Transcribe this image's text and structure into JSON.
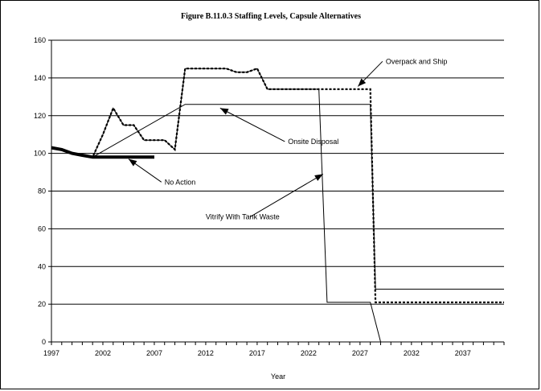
{
  "chart_data": {
    "type": "line",
    "title": "Figure B.11.0.3  Staffing Levels, Capsule Alternatives",
    "xlabel": "Year",
    "ylabel": "",
    "xlim": [
      1997,
      2041
    ],
    "ylim": [
      0,
      160
    ],
    "yticks": [
      0,
      20,
      40,
      60,
      80,
      100,
      120,
      140,
      160
    ],
    "xticks": [
      1997,
      2002,
      2007,
      2012,
      2017,
      2022,
      2027,
      2032,
      2037
    ],
    "grid": "horizontal",
    "legend": "none",
    "series": [
      {
        "name": "No Action",
        "style": "thick",
        "x": [
          1997,
          1998,
          1999,
          2000,
          2001,
          2002,
          2003,
          2004,
          2005,
          2006,
          2007
        ],
        "y": [
          103,
          102,
          100,
          99,
          98,
          98,
          98,
          98,
          98,
          98,
          98
        ]
      },
      {
        "name": "Onsite Disposal",
        "style": "thin",
        "x": [
          1997,
          1998,
          1999,
          2000,
          2001,
          2010,
          2018,
          2028,
          2028.5,
          2041
        ],
        "y": [
          103,
          102,
          100,
          99,
          98,
          126,
          126,
          126,
          28,
          28
        ]
      },
      {
        "name": "Overpack and Ship",
        "style": "dotted",
        "x": [
          1997,
          1998,
          1999,
          2000,
          2001,
          2002,
          2003,
          2004,
          2005,
          2006,
          2007,
          2008,
          2009,
          2010,
          2014,
          2015,
          2016,
          2017,
          2018,
          2028,
          2028.5,
          2041
        ],
        "y": [
          103,
          102,
          100,
          99,
          98,
          110,
          124,
          115,
          115,
          107,
          107,
          107,
          102,
          145,
          145,
          143,
          143,
          145,
          134,
          134,
          21,
          21
        ]
      },
      {
        "name": "Vitrify With Tank Waste",
        "style": "thin",
        "x": [
          1997,
          1998,
          1999,
          2000,
          2001,
          2002,
          2003,
          2004,
          2005,
          2006,
          2007,
          2008,
          2009,
          2010,
          2014,
          2015,
          2016,
          2017,
          2018,
          2023,
          2023.8,
          2028,
          2029
        ],
        "y": [
          103,
          102,
          100,
          99,
          98,
          110,
          124,
          115,
          115,
          107,
          107,
          107,
          102,
          145,
          145,
          143,
          143,
          145,
          134,
          134,
          21,
          21,
          0
        ]
      }
    ],
    "annotations": [
      {
        "text": "Overpack and Ship",
        "tx": 2029.5,
        "ty": 147.5,
        "ax": 2026.8,
        "ay": 135.5
      },
      {
        "text": "Onsite Disposal",
        "tx": 2020,
        "ty": 105,
        "ax": 2013.4,
        "ay": 124
      },
      {
        "text": "No Action",
        "tx": 2008,
        "ty": 83.5,
        "ax": 2004.5,
        "ay": 97
      },
      {
        "text": "Vitrify With Tank Waste",
        "tx": 2012,
        "ty": 65,
        "ax": 2023.4,
        "ay": 89
      }
    ]
  }
}
